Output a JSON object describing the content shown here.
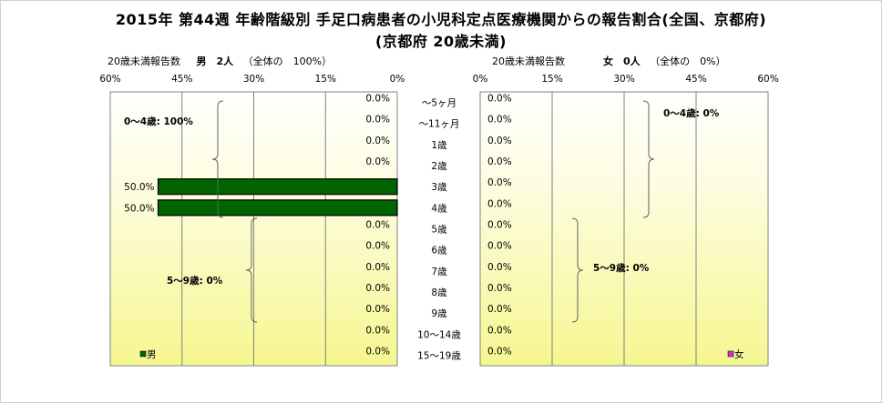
{
  "title_line1": "2015年 第44週 年齢階級別 手足口病患者の小児科定点医療機関からの報告割合(全国、京都府)",
  "title_line2": "(京都府 20歳未満)",
  "male_header": {
    "prefix": "20歳未満報告数",
    "label": "男　2人",
    "ratio": "（全体の　100%）"
  },
  "female_header": {
    "prefix": "20歳未満報告数",
    "label": "女　0人",
    "ratio": "（全体の　0%）"
  },
  "chart_data": {
    "type": "bar",
    "orientation": "horizontal",
    "categories": [
      "～5ヶ月",
      "～11ヶ月",
      "1歳",
      "2歳",
      "3歳",
      "4歳",
      "5歳",
      "6歳",
      "7歳",
      "8歳",
      "9歳",
      "10～14歳",
      "15～19歳"
    ],
    "x_ticks": [
      "60%",
      "45%",
      "30%",
      "15%",
      "0%"
    ],
    "x_ticks_right": [
      "0%",
      "15%",
      "30%",
      "45%",
      "60%"
    ],
    "xlim": [
      0,
      60
    ],
    "grid": true,
    "series": [
      {
        "name": "男",
        "color": "#006400",
        "values": [
          0,
          0,
          0,
          0,
          50,
          50,
          0,
          0,
          0,
          0,
          0,
          0,
          0
        ],
        "labels": [
          "0.0%",
          "0.0%",
          "0.0%",
          "0.0%",
          "50.0%",
          "50.0%",
          "0.0%",
          "0.0%",
          "0.0%",
          "0.0%",
          "0.0%",
          "0.0%",
          "0.0%"
        ]
      },
      {
        "name": "女",
        "color": "#cc33cc",
        "values": [
          0,
          0,
          0,
          0,
          0,
          0,
          0,
          0,
          0,
          0,
          0,
          0,
          0
        ],
        "labels": [
          "0.0%",
          "0.0%",
          "0.0%",
          "0.0%",
          "0.0%",
          "0.0%",
          "0.0%",
          "0.0%",
          "0.0%",
          "0.0%",
          "0.0%",
          "0.0%",
          "0.0%"
        ]
      }
    ],
    "annotations": {
      "male_0_4": "0～4歳: 100%",
      "male_5_9": "5～9歳: 0%",
      "female_0_4": "0～4歳: 0%",
      "female_5_9": "5～9歳: 0%"
    },
    "legend_male": "男",
    "legend_female": "女"
  }
}
